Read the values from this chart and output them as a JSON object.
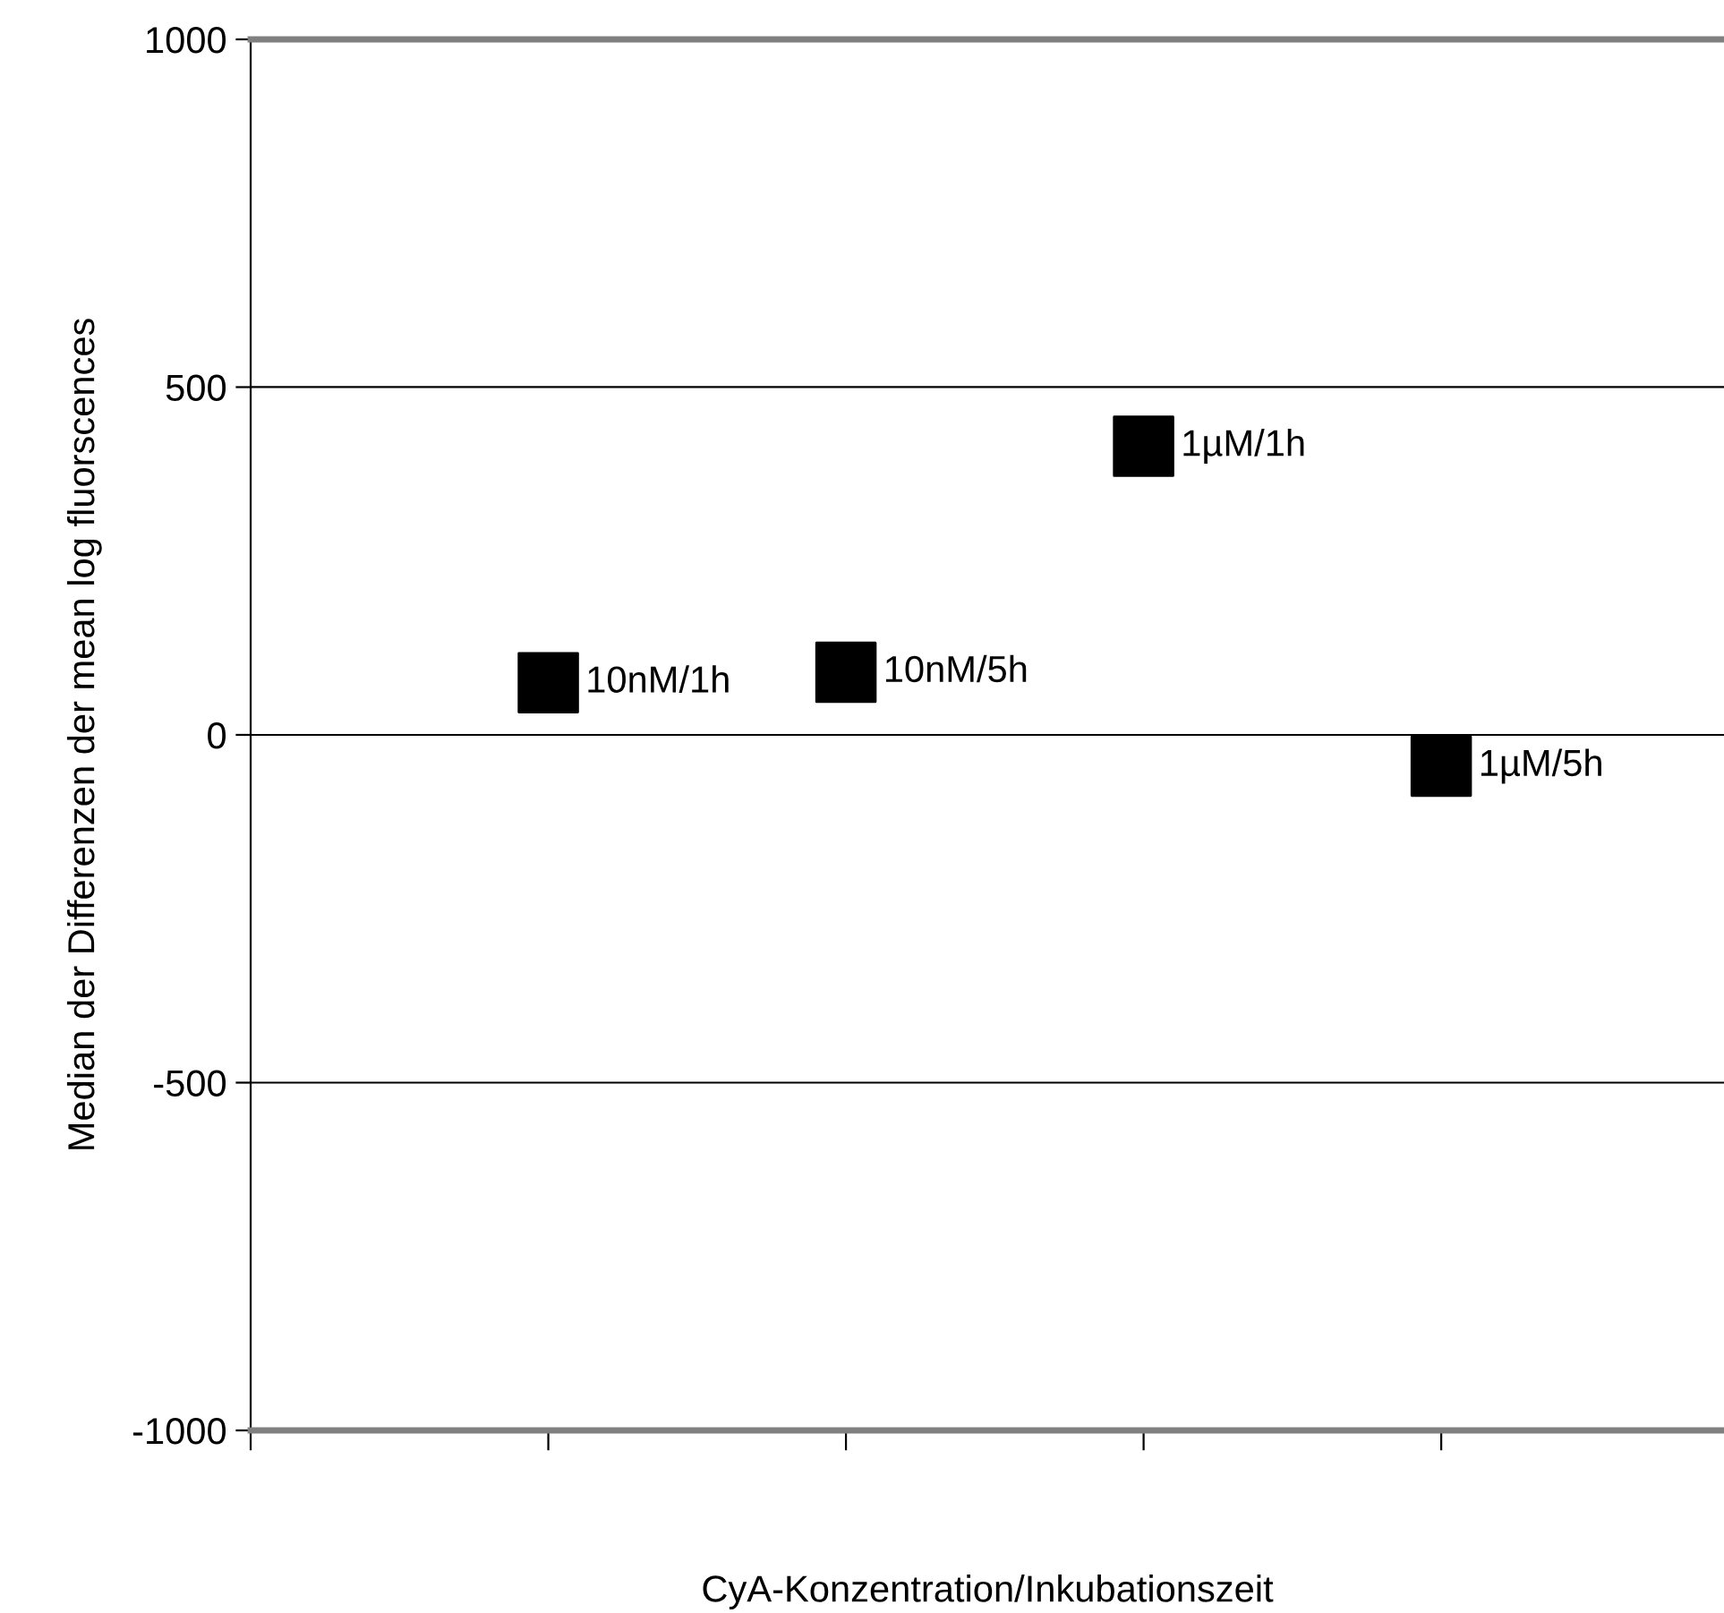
{
  "chart_data": {
    "type": "scatter",
    "xlabel": "CyA-Konzentration/Inkubationszeit",
    "ylabel": "Median der Differenzen der mean log fluorscences",
    "categories": [
      null,
      null,
      null,
      null
    ],
    "series": [
      {
        "name": "10nM/1h",
        "color": "#000000",
        "values": [
          75,
          null,
          null,
          null
        ]
      },
      {
        "name": "10nM/5h",
        "color": "#000000",
        "values": [
          null,
          90,
          null,
          null
        ]
      },
      {
        "name": "1µM/1h",
        "color": "#000000",
        "values": [
          null,
          null,
          415,
          null
        ]
      },
      {
        "name": "1µM/5h",
        "color": "#000000",
        "values": [
          null,
          null,
          null,
          -45
        ]
      }
    ],
    "ylim": [
      -1000,
      1000
    ],
    "yticks": [
      -1000,
      -500,
      0,
      500,
      1000
    ],
    "grid": "y",
    "legend": false,
    "marker": "square",
    "tick_labels": "y"
  }
}
